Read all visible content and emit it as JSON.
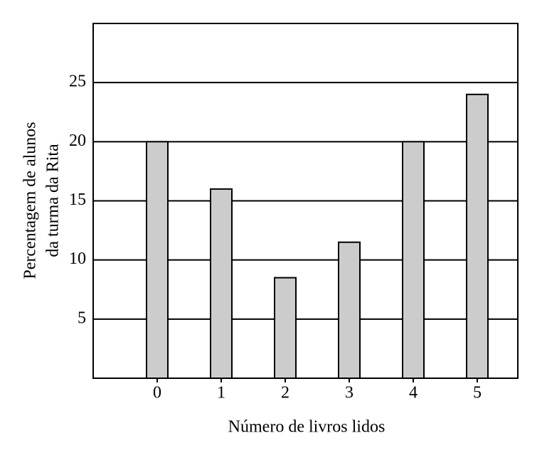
{
  "chart_data": {
    "type": "bar",
    "y_label": [
      "Percentagem de alunos",
      "da turma da Rita"
    ],
    "x_label": "Número de livros lidos",
    "categories": [
      "0",
      "1",
      "2",
      "3",
      "4",
      "5"
    ],
    "values": [
      20,
      16,
      8.5,
      11.5,
      20,
      24
    ],
    "color": "#cccccc",
    "ylim": [
      0,
      30
    ],
    "yticks": [
      5,
      10,
      15,
      20,
      25
    ],
    "grid": true
  }
}
